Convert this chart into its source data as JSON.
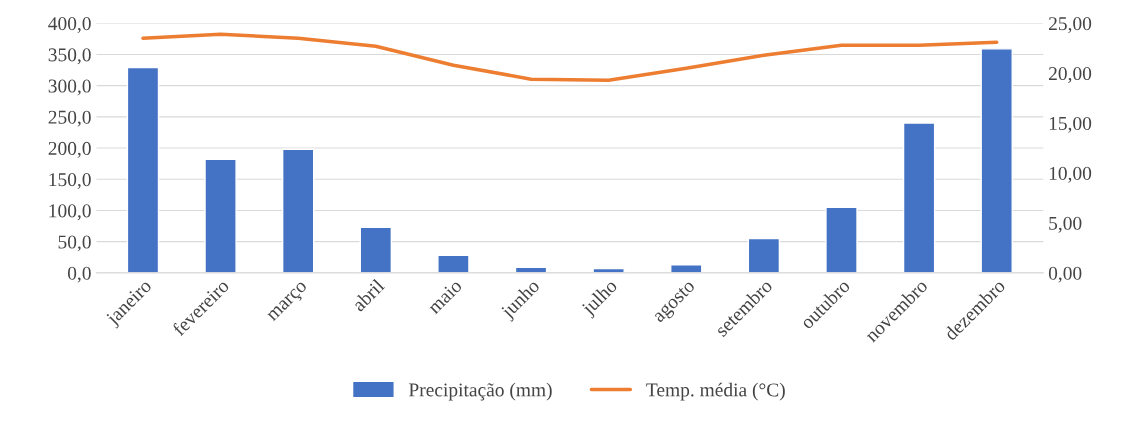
{
  "chart_data": {
    "type": "bar",
    "categories": [
      "janeiro",
      "fevereiro",
      "março",
      "abril",
      "maio",
      "junho",
      "julho",
      "agosto",
      "setembro",
      "outubro",
      "novembro",
      "dezembro"
    ],
    "series": [
      {
        "name": "Precipitação (mm)",
        "color": "#4472c4",
        "values": [
          329,
          182,
          198,
          73,
          28,
          9,
          7,
          13,
          55,
          105,
          240,
          359
        ]
      },
      {
        "name": "Temp. média (°C)",
        "color": "#ed7d31",
        "type": "line",
        "axis": "y2",
        "values": [
          23.5,
          23.9,
          23.5,
          22.7,
          20.8,
          19.4,
          19.3,
          20.5,
          21.8,
          22.8,
          22.8,
          23.1
        ]
      }
    ],
    "ylim": [
      0,
      400
    ],
    "yticks": [
      {
        "value": 0,
        "label": "0,0"
      },
      {
        "value": 50,
        "label": "50,0"
      },
      {
        "value": 100,
        "label": "100,0"
      },
      {
        "value": 150,
        "label": "150,0"
      },
      {
        "value": 200,
        "label": "200,0"
      },
      {
        "value": 250,
        "label": "250,0"
      },
      {
        "value": 300,
        "label": "300,0"
      },
      {
        "value": 350,
        "label": "350,0"
      },
      {
        "value": 400,
        "label": "400,0"
      }
    ],
    "y2lim": [
      0,
      25
    ],
    "y2ticks": [
      {
        "value": 0,
        "label": "0,00"
      },
      {
        "value": 5,
        "label": "5,00"
      },
      {
        "value": 10,
        "label": "10,00"
      },
      {
        "value": 15,
        "label": "15,00"
      },
      {
        "value": 20,
        "label": "20,00"
      },
      {
        "value": 25,
        "label": "25,00"
      }
    ],
    "grid": "y",
    "legend": "bottom"
  }
}
